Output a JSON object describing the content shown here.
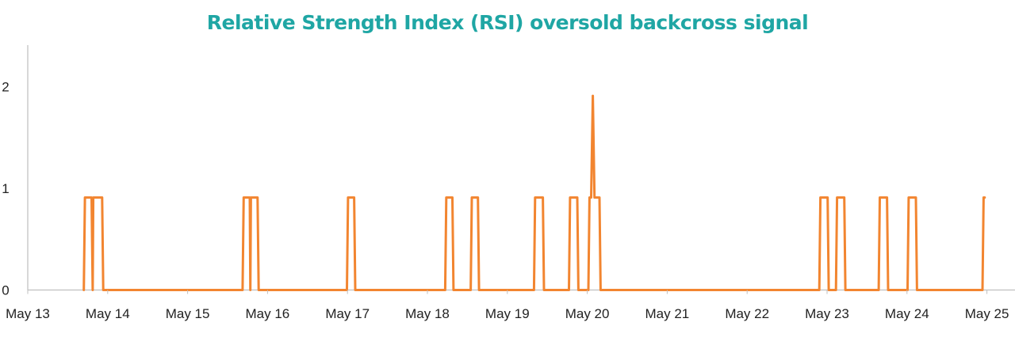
{
  "colors": {
    "title": "#1fa6a4",
    "line": "#f28530",
    "axis": "#bfbfbf"
  },
  "chart_data": {
    "type": "line",
    "title": "Relative Strength Index (RSI) oversold backcross signal",
    "xlabel": "",
    "ylabel": "",
    "x_ticks": [
      "May 13",
      "May 14",
      "May 15",
      "May 16",
      "May 17",
      "May 18",
      "May 19",
      "May 20",
      "May 21",
      "May 22",
      "May 23",
      "May 24",
      "May 25"
    ],
    "y_ticks": [
      "0",
      "1",
      "2"
    ],
    "xlim": [
      "2024-05-13",
      "2024-05-25T12:00"
    ],
    "ylim": [
      0,
      2.4
    ],
    "grid": false,
    "series": [
      {
        "x": [
          "2024-05-13T16:50",
          "2024-05-13T17:10",
          "2024-05-13T19:10",
          "2024-05-13T19:30",
          "2024-05-13T19:40",
          "2024-05-13T20:00",
          "2024-05-13T22:20",
          "2024-05-13T22:40",
          "2024-05-15T16:30",
          "2024-05-15T16:50",
          "2024-05-15T18:40",
          "2024-05-15T18:50",
          "2024-05-15T19:00",
          "2024-05-15T19:10",
          "2024-05-15T21:00",
          "2024-05-15T21:20",
          "2024-05-16T23:50",
          "2024-05-17T00:10",
          "2024-05-17T02:00",
          "2024-05-17T02:20",
          "2024-05-18T05:20",
          "2024-05-18T05:40",
          "2024-05-18T07:30",
          "2024-05-18T07:50",
          "2024-05-18T13:00",
          "2024-05-18T13:20",
          "2024-05-18T15:10",
          "2024-05-18T15:30",
          "2024-05-19T08:00",
          "2024-05-19T08:20",
          "2024-05-19T10:40",
          "2024-05-19T11:00",
          "2024-05-19T18:30",
          "2024-05-19T18:50",
          "2024-05-19T21:00",
          "2024-05-19T21:20",
          "2024-05-20T00:20",
          "2024-05-20T00:40",
          "2024-05-20T01:10",
          "2024-05-20T01:40",
          "2024-05-20T02:10",
          "2024-05-20T02:30",
          "2024-05-20T03:40",
          "2024-05-20T04:00",
          "2024-05-22T21:40",
          "2024-05-22T22:00",
          "2024-05-23T00:10",
          "2024-05-23T00:30",
          "2024-05-23T02:40",
          "2024-05-23T03:00",
          "2024-05-23T05:10",
          "2024-05-23T05:30",
          "2024-05-23T15:30",
          "2024-05-23T15:50",
          "2024-05-23T18:00",
          "2024-05-23T18:20",
          "2024-05-24T00:10",
          "2024-05-24T00:30",
          "2024-05-24T02:40",
          "2024-05-24T03:00",
          "2024-05-24T22:40",
          "2024-05-24T23:00",
          "2024-05-24T23:20"
        ],
        "y": [
          0,
          0.91,
          0.91,
          0,
          0.91,
          0.91,
          0.91,
          0,
          0,
          0.91,
          0.91,
          0,
          0.91,
          0.91,
          0.91,
          0,
          0,
          0.91,
          0.91,
          0,
          0,
          0.91,
          0.91,
          0,
          0,
          0.91,
          0.91,
          0,
          0,
          0.91,
          0.91,
          0,
          0,
          0.91,
          0.91,
          0,
          0,
          0.91,
          0.91,
          1.91,
          0.91,
          0.91,
          0.91,
          0,
          0,
          0.91,
          0.91,
          0,
          0,
          0.91,
          0.91,
          0,
          0,
          0.91,
          0.91,
          0,
          0,
          0.91,
          0.91,
          0,
          0,
          0.91,
          0.91
        ]
      }
    ]
  }
}
